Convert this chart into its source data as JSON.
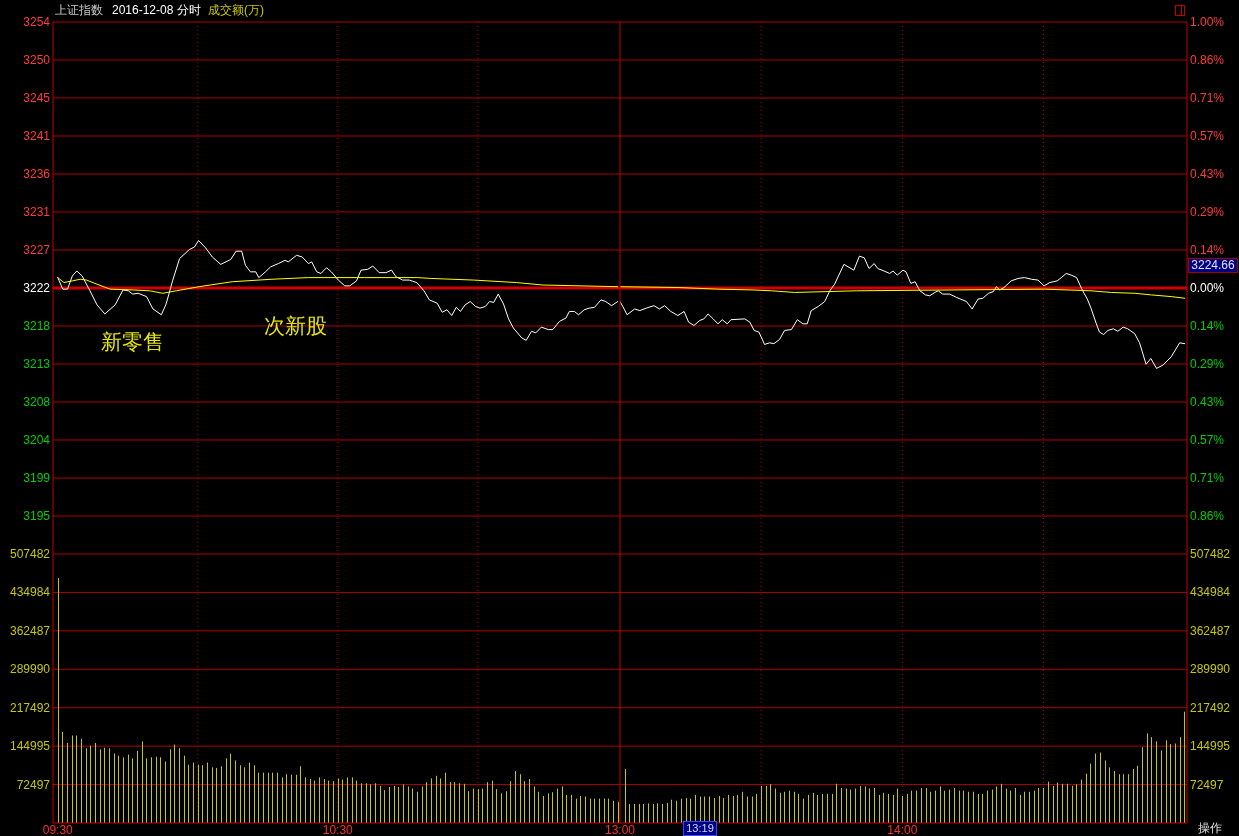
{
  "chart_data": [
    {
      "type": "line",
      "title": "上证指数",
      "subtitle": "2016-12-08 分时",
      "annotations": [
        "成交额(万)",
        "新零售",
        "次新股"
      ],
      "series": [
        {
          "color": "#ffffff",
          "x": [
            9.5,
            9.518,
            9.535,
            9.552,
            9.568,
            9.587,
            9.615,
            9.64,
            9.668,
            9.705,
            9.733,
            9.752,
            9.768,
            9.787,
            9.817,
            9.84,
            9.87,
            9.887,
            9.91,
            9.935,
            9.97,
            9.988,
            10.003,
            10.028,
            10.052,
            10.082,
            10.118,
            10.137,
            10.157,
            10.17,
            10.188,
            10.207,
            10.218,
            10.242,
            10.26,
            10.288,
            10.312,
            10.323,
            10.353,
            10.373,
            10.395,
            10.407,
            10.425,
            10.44,
            10.46,
            10.477,
            10.502,
            10.525,
            10.543,
            10.567,
            10.583,
            10.607,
            10.625,
            10.648,
            10.672,
            10.692,
            10.708,
            10.732,
            10.755,
            10.782,
            10.808,
            10.827,
            10.855,
            10.873,
            10.89,
            10.907,
            10.923,
            10.938,
            10.955,
            10.973,
            10.992,
            11.008,
            11.027,
            11.042,
            11.057,
            11.073,
            11.092,
            11.11,
            11.127,
            11.157,
            11.173,
            11.192,
            11.207,
            11.227,
            11.252,
            11.268,
            11.292,
            11.315,
            11.327,
            11.345,
            11.36,
            11.38,
            11.398,
            11.417,
            11.44,
            11.457,
            11.478,
            11.5
          ],
          "values": [
            3223.5,
            3222.1,
            3222.1,
            3223.7,
            3224.3,
            3223.7,
            3221.9,
            3220.2,
            3219.1,
            3220.2,
            3222.0,
            3221.9,
            3221.5,
            3221.6,
            3221.2,
            3219.7,
            3219.0,
            3220.3,
            3223.1,
            3225.8,
            3226.9,
            3227.2,
            3228.0,
            3227.1,
            3226.0,
            3225.1,
            3225.7,
            3226.7,
            3226.7,
            3225.0,
            3224.2,
            3224.2,
            3223.5,
            3224.2,
            3224.8,
            3225.2,
            3225.6,
            3225.4,
            3226.2,
            3226.0,
            3225.2,
            3225.4,
            3224.2,
            3224.0,
            3224.7,
            3224.2,
            3223.2,
            3222.5,
            3222.5,
            3223.1,
            3224.4,
            3224.5,
            3224.9,
            3224.1,
            3224.1,
            3224.4,
            3223.6,
            3223.2,
            3223.2,
            3222.9,
            3221.9,
            3220.8,
            3220.4,
            3219.3,
            3219.6,
            3218.9,
            3219.9,
            3219.4,
            3220.2,
            3220.6,
            3220.0,
            3219.8,
            3220.0,
            3220.6,
            3220.5,
            3221.5,
            3220.3,
            3218.5,
            3217.4,
            3216.2,
            3215.9,
            3217.0,
            3216.8,
            3217.5,
            3217.2,
            3217.2,
            3218.2,
            3218.6,
            3219.4,
            3219.4,
            3219.0,
            3219.6,
            3219.8,
            3219.9,
            3220.8,
            3220.6,
            3220.1,
            3220.6
          ]
        },
        {
          "color": "#ffff00",
          "x": [
            9.5,
            9.522,
            9.552,
            9.58,
            9.603,
            9.64,
            9.687,
            9.77,
            9.828,
            9.875,
            9.923,
            10.005,
            10.123,
            10.265,
            10.395,
            10.595,
            10.785,
            10.832,
            10.985,
            11.138,
            11.233,
            11.5
          ],
          "values": [
            3223.5,
            3222.9,
            3223.1,
            3223.3,
            3223.2,
            3222.7,
            3222.1,
            3222.0,
            3221.9,
            3221.6,
            3221.9,
            3222.4,
            3223.0,
            3223.3,
            3223.5,
            3223.5,
            3223.5,
            3223.4,
            3223.2,
            3222.9,
            3222.6,
            3222.4
          ]
        }
      ],
      "xlim": [
        9.483,
        11.508
      ],
      "xticks": [
        {
          "value": 10,
          "label": null
        },
        {
          "value": 10.5,
          "label": null
        },
        {
          "value": 11,
          "label": null
        }
      ],
      "ylim": [
        3190.02,
        3254.46
      ],
      "yticks": [
        {
          "value": 3254.46,
          "label": "3254"
        },
        {
          "value": 3249.86,
          "label": "3250"
        },
        {
          "value": 3245.26,
          "label": "3245"
        },
        {
          "value": 3240.65,
          "label": "3241"
        },
        {
          "value": 3236.05,
          "label": "3236"
        },
        {
          "value": 3231.45,
          "label": "3231"
        },
        {
          "value": 3226.84,
          "label": "3227"
        },
        {
          "value": 3222.24,
          "label": "3222"
        },
        {
          "value": 3217.64,
          "label": "3218"
        },
        {
          "value": 3213.03,
          "label": "3213"
        },
        {
          "value": 3208.43,
          "label": "3208"
        },
        {
          "value": 3203.83,
          "label": "3204"
        },
        {
          "value": 3199.22,
          "label": "3199"
        },
        {
          "value": 3194.62,
          "label": "3195"
        }
      ],
      "ref_lines": [
        {
          "axis": "y",
          "value": 3222.24,
          "color": "#d00000"
        }
      ],
      "grid": true,
      "tick_labels": "y"
    },
    {
      "type": "line",
      "annotations": [
        "3224.66"
      ],
      "series": [
        {
          "color": "#ffffff",
          "x": [
            13,
            13.01,
            13.025,
            13.052,
            13.07,
            13.093,
            13.12,
            13.14,
            13.158,
            13.18,
            13.205,
            13.227,
            13.243,
            13.262,
            13.282,
            13.297,
            13.312,
            13.33,
            13.347,
            13.362,
            13.38,
            13.393,
            13.442,
            13.46,
            13.475,
            13.492,
            13.512,
            13.53,
            13.545,
            13.565,
            13.583,
            13.607,
            13.628,
            13.648,
            13.663,
            13.677,
            13.702,
            13.725,
            13.743,
            13.76,
            13.793,
            13.828,
            13.848,
            13.865,
            13.882,
            13.9,
            13.913,
            13.935,
            13.955,
            13.967,
            13.982,
            14.002,
            14.013,
            14.03,
            14.045,
            14.062,
            14.082,
            14.097,
            14.115,
            14.127,
            14.143,
            14.168,
            14.192,
            14.227,
            14.247,
            14.268,
            14.285,
            14.305,
            14.322,
            14.333,
            14.345,
            14.36,
            14.385,
            14.41,
            14.433,
            14.457,
            14.48,
            14.502,
            14.522,
            14.548,
            14.563,
            14.58,
            14.598,
            14.617,
            14.637,
            14.655,
            14.668,
            14.687,
            14.698,
            14.713,
            14.728,
            14.747,
            14.763,
            14.782,
            14.798,
            14.823,
            14.84,
            14.863,
            14.88,
            14.9,
            14.923,
            14.952,
            14.982,
            15
          ],
          "values": [
            3220.6,
            3220.0,
            3219.0,
            3219.7,
            3219.5,
            3219.8,
            3220.1,
            3219.7,
            3220.1,
            3219.4,
            3218.9,
            3219.4,
            3218.1,
            3217.7,
            3218.3,
            3218.5,
            3219.1,
            3218.5,
            3217.9,
            3218.4,
            3217.9,
            3218.4,
            3218.5,
            3218.1,
            3217.1,
            3216.9,
            3215.4,
            3215.6,
            3215.5,
            3216.0,
            3217.1,
            3217.2,
            3218.4,
            3217.9,
            3217.9,
            3219.5,
            3220.0,
            3220.6,
            3221.9,
            3222.7,
            3225.1,
            3224.4,
            3226.1,
            3225.9,
            3224.6,
            3225.2,
            3224.6,
            3224.3,
            3224.0,
            3224.3,
            3223.8,
            3224.4,
            3224.2,
            3222.8,
            3223.0,
            3221.9,
            3221.4,
            3221.3,
            3221.7,
            3221.9,
            3221.5,
            3221.5,
            3221.1,
            3220.6,
            3219.7,
            3220.9,
            3221.0,
            3221.6,
            3221.8,
            3222.4,
            3222.0,
            3222.3,
            3223.1,
            3223.4,
            3223.5,
            3223.3,
            3223.2,
            3222.5,
            3222.9,
            3223.1,
            3223.5,
            3224.0,
            3223.8,
            3223.5,
            3222.0,
            3220.9,
            3219.8,
            3217.9,
            3216.9,
            3216.6,
            3217.1,
            3217.3,
            3217.0,
            3217.5,
            3217.3,
            3216.7,
            3215.6,
            3213.0,
            3213.7,
            3212.5,
            3212.9,
            3213.9,
            3215.6,
            3215.5
          ]
        },
        {
          "color": "#ffff00",
          "x": [
            13,
            13.205,
            13.347,
            13.472,
            13.537,
            13.618,
            13.837,
            14.503,
            14.668,
            14.74,
            14.823,
            14.882,
            14.952,
            15
          ],
          "values": [
            3222.4,
            3222.3,
            3222.1,
            3222.0,
            3221.9,
            3221.7,
            3221.9,
            3222.1,
            3221.9,
            3221.7,
            3221.6,
            3221.4,
            3221.2,
            3221.0
          ]
        }
      ],
      "xlim": [
        13,
        15.008
      ],
      "xticks": [
        {
          "value": 13.5,
          "label": null
        },
        {
          "value": 14,
          "label": null
        },
        {
          "value": 14.5,
          "label": null
        }
      ],
      "ylim": [
        3190.02,
        3254.46
      ],
      "y2lim": [
        -1,
        1
      ],
      "y2ticks": [
        {
          "value": 1,
          "label": "1.00%"
        },
        {
          "value": 0.8571,
          "label": "0.86%"
        },
        {
          "value": 0.7143,
          "label": "0.71%"
        },
        {
          "value": 0.5714,
          "label": "0.57%"
        },
        {
          "value": 0.4286,
          "label": "0.43%"
        },
        {
          "value": 0.2857,
          "label": "0.29%"
        },
        {
          "value": 0.1429,
          "label": "0.14%"
        },
        {
          "value": 0,
          "label": "0.00%"
        },
        {
          "value": -0.1429,
          "label": "0.14%"
        },
        {
          "value": -0.2857,
          "label": "0.29%"
        },
        {
          "value": -0.4286,
          "label": "0.43%"
        },
        {
          "value": -0.5714,
          "label": "0.57%"
        },
        {
          "value": -0.7143,
          "label": "0.71%"
        },
        {
          "value": -0.8571,
          "label": "0.86%"
        }
      ],
      "ref_lines": [
        {
          "axis": "y",
          "value": 3222.24,
          "color": "#d00000"
        }
      ],
      "grid": true,
      "tick_labels": "y"
    },
    {
      "type": "bar",
      "color": "#c8c800",
      "x": [
        9.5,
        9.517,
        9.533,
        9.55,
        9.567,
        9.583,
        9.6,
        9.617,
        9.633,
        9.65,
        9.667,
        9.683,
        9.7,
        9.717,
        9.733,
        9.75,
        9.767,
        9.783,
        9.8,
        9.817,
        9.833,
        9.85,
        9.867,
        9.883,
        9.9,
        9.917,
        9.933,
        9.95,
        9.967,
        9.983,
        10,
        10.017,
        10.033,
        10.05,
        10.067,
        10.083,
        10.1,
        10.117,
        10.133,
        10.15,
        10.167,
        10.183,
        10.2,
        10.217,
        10.233,
        10.25,
        10.267,
        10.283,
        10.3,
        10.317,
        10.333,
        10.35,
        10.367,
        10.383,
        10.4,
        10.417,
        10.433,
        10.45,
        10.467,
        10.483,
        10.5,
        10.517,
        10.533,
        10.55,
        10.567,
        10.583,
        10.6,
        10.617,
        10.633,
        10.65,
        10.667,
        10.683,
        10.7,
        10.717,
        10.733,
        10.75,
        10.767,
        10.783,
        10.8,
        10.817,
        10.833,
        10.85,
        10.867,
        10.883,
        10.9,
        10.917,
        10.933,
        10.95,
        10.967,
        10.983,
        11,
        11.017,
        11.033,
        11.05,
        11.067,
        11.083,
        11.1,
        11.117,
        11.133,
        11.15,
        11.167,
        11.183,
        11.2,
        11.217,
        11.233,
        11.25,
        11.267,
        11.283,
        11.3,
        11.317,
        11.333,
        11.35,
        11.367,
        11.383,
        11.4,
        11.417,
        11.433,
        11.45,
        11.467,
        11.483,
        11.5
      ],
      "values": [
        462000,
        172000,
        151000,
        165000,
        165000,
        159000,
        141000,
        146000,
        151000,
        139000,
        142000,
        141000,
        131000,
        127000,
        124000,
        129000,
        122000,
        136000,
        154000,
        122000,
        124000,
        125000,
        124000,
        116000,
        139000,
        148000,
        141000,
        127000,
        110000,
        114000,
        110000,
        109000,
        114000,
        105000,
        104000,
        107000,
        122000,
        131000,
        118000,
        109000,
        105000,
        114000,
        109000,
        95000,
        95000,
        95000,
        95000,
        95000,
        86000,
        92000,
        91000,
        91000,
        107000,
        86000,
        83000,
        80000,
        86000,
        83000,
        80000,
        79000,
        84000,
        82000,
        86000,
        86000,
        80000,
        75000,
        75000,
        73000,
        75000,
        70000,
        62000,
        68000,
        70000,
        68000,
        73000,
        69000,
        65000,
        59000,
        69000,
        77000,
        84000,
        89000,
        84000,
        95000,
        77000,
        77000,
        75000,
        74000,
        60000,
        65000,
        64000,
        65000,
        77000,
        80000,
        64000,
        56000,
        60000,
        79000,
        98000,
        92000,
        79000,
        83000,
        69000,
        59000,
        51000,
        56000,
        58000,
        65000,
        69000,
        53000,
        53000,
        46000,
        51000,
        50000,
        46000,
        46000,
        46000,
        46000,
        46000,
        42000,
        40000
      ],
      "xlim": [
        9.483,
        11.508
      ],
      "xticks": [
        {
          "value": 9.5,
          "label": "09:30"
        },
        {
          "value": 10,
          "label": null
        },
        {
          "value": 10.5,
          "label": "10:30"
        },
        {
          "value": 11,
          "label": null
        }
      ],
      "ylim": [
        0,
        507482
      ],
      "yticks": [
        72497,
        144995,
        217492,
        289990,
        362487,
        434984,
        507482
      ],
      "grid": true
    },
    {
      "type": "bar",
      "annotations": [
        "13:19",
        "操作"
      ],
      "x": [
        13.017,
        13.033,
        13.05,
        13.067,
        13.083,
        13.1,
        13.117,
        13.133,
        13.15,
        13.167,
        13.183,
        13.2,
        13.217,
        13.233,
        13.25,
        13.267,
        13.283,
        13.3,
        13.317,
        13.333,
        13.35,
        13.367,
        13.383,
        13.4,
        13.417,
        13.433,
        13.45,
        13.467,
        13.483,
        13.5,
        13.517,
        13.533,
        13.55,
        13.567,
        13.583,
        13.6,
        13.617,
        13.633,
        13.65,
        13.667,
        13.683,
        13.7,
        13.717,
        13.733,
        13.75,
        13.767,
        13.783,
        13.8,
        13.817,
        13.833,
        13.85,
        13.867,
        13.883,
        13.9,
        13.917,
        13.933,
        13.95,
        13.967,
        13.983,
        14,
        14.017,
        14.033,
        14.05,
        14.067,
        14.083,
        14.1,
        14.117,
        14.133,
        14.15,
        14.167,
        14.183,
        14.2,
        14.217,
        14.233,
        14.25,
        14.267,
        14.283,
        14.3,
        14.317,
        14.333,
        14.35,
        14.367,
        14.383,
        14.4,
        14.417,
        14.433,
        14.45,
        14.467,
        14.483,
        14.5,
        14.517,
        14.533,
        14.55,
        14.567,
        14.583,
        14.6,
        14.617,
        14.633,
        14.65,
        14.667,
        14.683,
        14.7,
        14.717,
        14.733,
        14.75,
        14.767,
        14.783,
        14.8,
        14.817,
        14.833,
        14.85,
        14.867,
        14.883,
        14.9,
        14.917,
        14.933,
        14.95,
        14.967,
        14.983,
        15
      ],
      "series": [
        {
          "color": "#c8c800",
          "axis": "y2",
          "values": [
            102000,
            36000,
            36000,
            36000,
            36000,
            37000,
            36000,
            37000,
            36000,
            38000,
            44000,
            42000,
            46000,
            47000,
            46000,
            53000,
            50000,
            50000,
            50000,
            47000,
            51000,
            47000,
            53000,
            51000,
            53000,
            59000,
            50000,
            50000,
            55000,
            70000,
            70000,
            73000,
            65000,
            57000,
            59000,
            61000,
            59000,
            55000,
            46000,
            53000,
            57000,
            53000,
            55000,
            55000,
            55000,
            74000,
            66000,
            65000,
            63000,
            65000,
            70000,
            69000,
            65000,
            66000,
            53000,
            57000,
            55000,
            53000,
            65000,
            51000,
            55000,
            61000,
            61000,
            66000,
            66000,
            59000,
            61000,
            69000,
            61000,
            63000,
            66000,
            61000,
            61000,
            59000,
            59000,
            55000,
            55000,
            61000,
            63000,
            69000,
            74000,
            65000,
            61000,
            66000,
            53000,
            59000,
            59000,
            61000,
            66000,
            66000,
            78000,
            70000,
            76000,
            74000,
            74000,
            70000,
            73000,
            82000,
            93000,
            112000,
            131000,
            133000,
            118000,
            105000,
            98000,
            92000,
            92000,
            92000,
            102000,
            108000,
            143000,
            169000,
            162000,
            154000,
            137000,
            156000,
            149000,
            150000,
            162000,
            210000
          ]
        }
      ],
      "xlim": [
        13,
        15.008
      ],
      "xticks": [
        {
          "value": 13,
          "label": "13:00"
        },
        {
          "value": 13.5,
          "label": null
        },
        {
          "value": 14,
          "label": "14:00"
        },
        {
          "value": 14.5,
          "label": null
        }
      ],
      "y2lim": [
        0,
        507482
      ],
      "y2ticks": [
        72497,
        144995,
        217492,
        289990,
        362487,
        434984,
        507482
      ],
      "grid": true
    }
  ]
}
